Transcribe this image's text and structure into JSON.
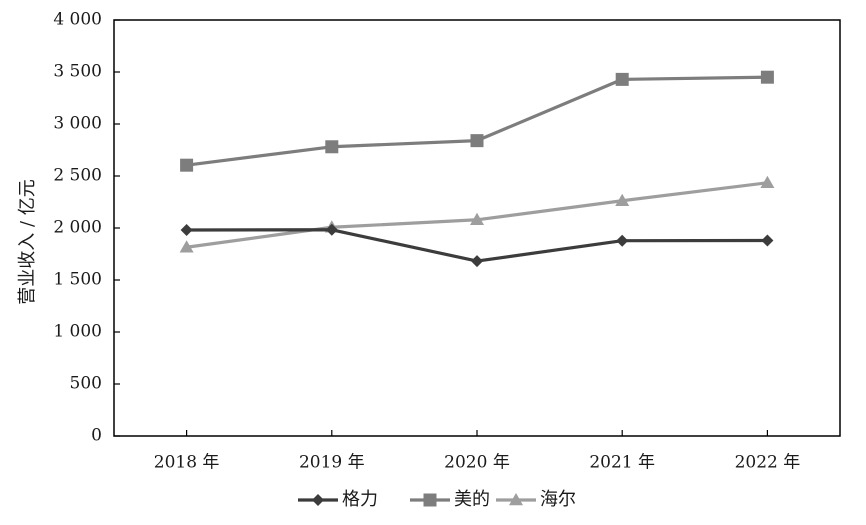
{
  "chart_data": {
    "type": "line",
    "categories": [
      "2018 年",
      "2019 年",
      "2020 年",
      "2021 年",
      "2022 年"
    ],
    "ylabel": "营业收入 / 亿元",
    "xlabel": "",
    "ylim": [
      0,
      4000
    ],
    "yticks": [
      0,
      500,
      1000,
      1500,
      2000,
      2500,
      3000,
      3500,
      4000
    ],
    "ytick_labels": [
      "0",
      "500",
      "1 000",
      "1 500",
      "2 000",
      "2 500",
      "3 000",
      "3 500",
      "4 000"
    ],
    "grid": false,
    "legend_position": "bottom",
    "series": [
      {
        "name": "格力",
        "marker": "diamond",
        "color": "#3c3c3c",
        "values": [
          1981,
          1983,
          1682,
          1878,
          1880
        ]
      },
      {
        "name": "美的",
        "marker": "square",
        "color": "#7d7d7d",
        "values": [
          2604,
          2781,
          2840,
          3429,
          3450
        ]
      },
      {
        "name": "海尔",
        "marker": "triangle",
        "color": "#9e9e9e",
        "values": [
          1815,
          2007,
          2079,
          2262,
          2435
        ]
      }
    ]
  }
}
